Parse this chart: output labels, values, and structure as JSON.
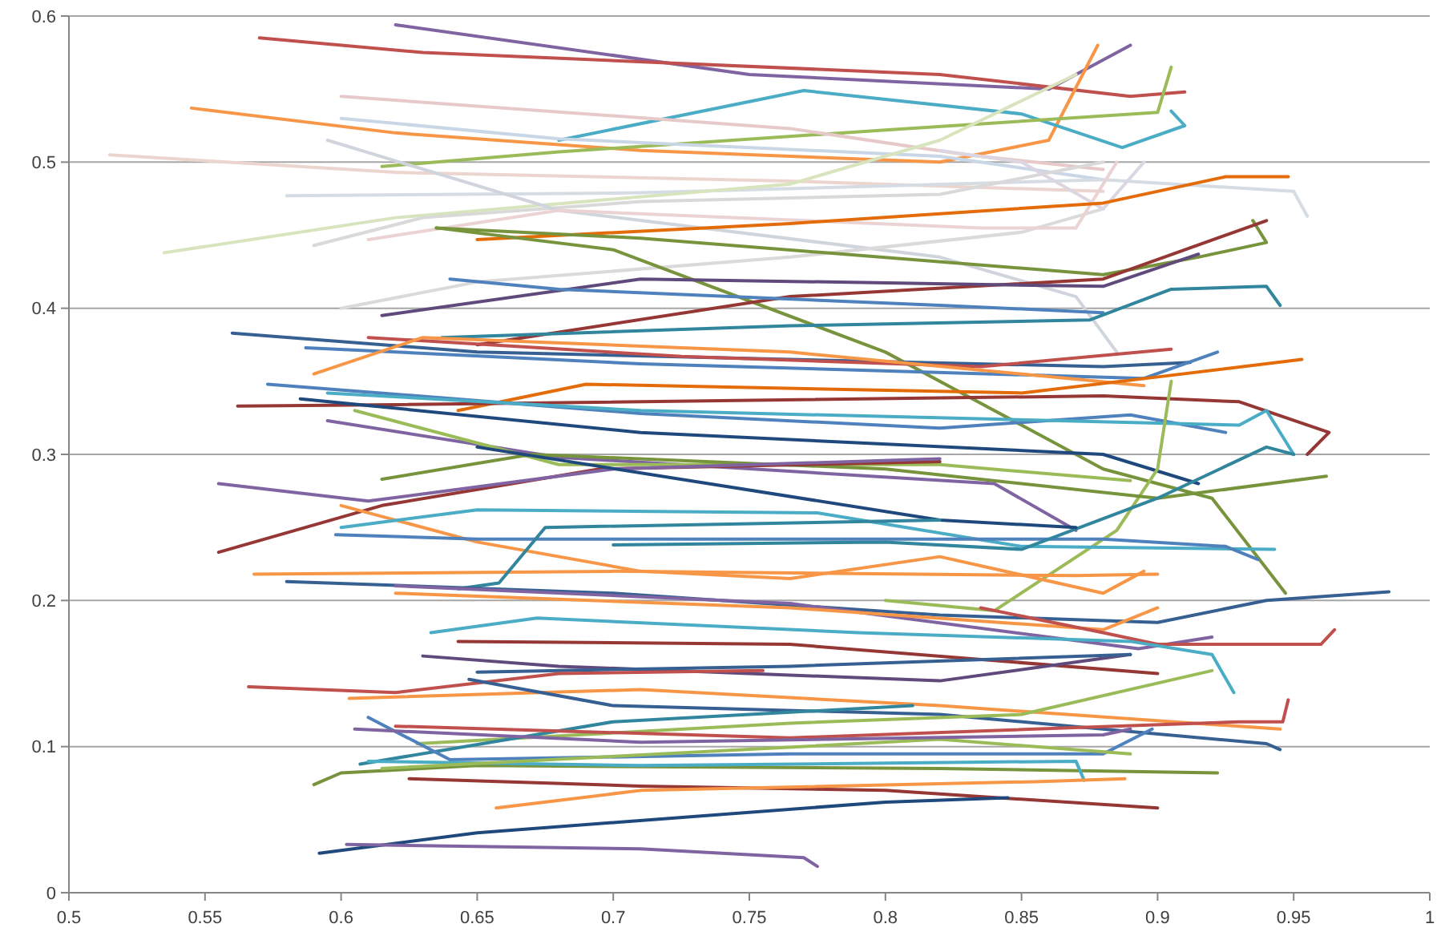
{
  "chart_data": {
    "type": "line",
    "xlim": [
      0.5,
      1
    ],
    "ylim": [
      0,
      0.6
    ],
    "xticks": [
      0.5,
      0.55,
      0.6,
      0.65,
      0.7,
      0.75,
      0.8,
      0.85,
      0.9,
      0.95,
      1
    ],
    "yticks": [
      0,
      0.1,
      0.2,
      0.3,
      0.4,
      0.5,
      0.6
    ],
    "grid": "y",
    "series": [
      {
        "color": "#8064a2",
        "x": [
          0.62,
          0.75,
          0.86,
          0.89
        ],
        "values": [
          0.594,
          0.56,
          0.55,
          0.58
        ]
      },
      {
        "color": "#c0504d",
        "x": [
          0.57,
          0.63,
          0.82,
          0.89,
          0.91
        ],
        "values": [
          0.585,
          0.575,
          0.56,
          0.545,
          0.548
        ]
      },
      {
        "color": "#f79646",
        "x": [
          0.545,
          0.62,
          0.71,
          0.82,
          0.86,
          0.878
        ],
        "values": [
          0.537,
          0.52,
          0.508,
          0.5,
          0.515,
          0.58
        ]
      },
      {
        "color": "#4bacc6",
        "x": [
          0.68,
          0.77,
          0.85,
          0.887,
          0.91,
          0.905
        ],
        "values": [
          0.515,
          0.549,
          0.533,
          0.51,
          0.525,
          0.535
        ]
      },
      {
        "color": "#9bbb59",
        "x": [
          0.615,
          0.68,
          0.8,
          0.9,
          0.905
        ],
        "values": [
          0.497,
          0.507,
          0.522,
          0.534,
          0.565
        ]
      },
      {
        "color": "#e6c9c8",
        "x": [
          0.6,
          0.765,
          0.83,
          0.88
        ],
        "values": [
          0.545,
          0.523,
          0.505,
          0.495
        ]
      },
      {
        "color": "#c9d6e6",
        "x": [
          0.6,
          0.68,
          0.82,
          0.88
        ],
        "values": [
          0.53,
          0.516,
          0.504,
          0.488
        ]
      },
      {
        "color": "#ecd5cf",
        "x": [
          0.515,
          0.62,
          0.765,
          0.88
        ],
        "values": [
          0.505,
          0.493,
          0.487,
          0.48
        ]
      },
      {
        "color": "#d6dce4",
        "x": [
          0.58,
          0.71,
          0.88,
          0.95,
          0.955
        ],
        "values": [
          0.477,
          0.479,
          0.488,
          0.48,
          0.463
        ]
      },
      {
        "color": "#d7e4bd",
        "x": [
          0.535,
          0.62,
          0.765,
          0.82,
          0.87
        ],
        "values": [
          0.438,
          0.462,
          0.485,
          0.515,
          0.56
        ]
      },
      {
        "color": "#d9d9d9",
        "x": [
          0.59,
          0.63,
          0.71,
          0.82,
          0.88
        ],
        "values": [
          0.443,
          0.462,
          0.473,
          0.478,
          0.5
        ]
      },
      {
        "color": "#d0d4dc",
        "x": [
          0.595,
          0.68,
          0.82,
          0.87,
          0.885
        ],
        "values": [
          0.515,
          0.467,
          0.435,
          0.408,
          0.37
        ]
      },
      {
        "color": "#dadada",
        "x": [
          0.6,
          0.65,
          0.765,
          0.85,
          0.88
        ],
        "values": [
          0.4,
          0.418,
          0.435,
          0.452,
          0.468
        ]
      },
      {
        "color": "#ead3d2",
        "x": [
          0.61,
          0.68,
          0.835,
          0.87,
          0.885
        ],
        "values": [
          0.447,
          0.467,
          0.455,
          0.455,
          0.5
        ]
      },
      {
        "color": "#dcd6e2",
        "x": [
          0.82,
          0.85,
          0.88,
          0.895
        ],
        "values": [
          0.508,
          0.5,
          0.468,
          0.5
        ]
      },
      {
        "color": "#e36c09",
        "x": [
          0.65,
          0.765,
          0.88,
          0.925,
          0.948
        ],
        "values": [
          0.447,
          0.458,
          0.472,
          0.49,
          0.49
        ]
      },
      {
        "color": "#77933c",
        "x": [
          0.635,
          0.71,
          0.88,
          0.915,
          0.94,
          0.935
        ],
        "values": [
          0.455,
          0.448,
          0.423,
          0.435,
          0.445,
          0.46
        ]
      },
      {
        "color": "#77933c",
        "x": [
          0.635,
          0.7,
          0.8,
          0.88,
          0.92,
          0.947
        ],
        "values": [
          0.455,
          0.44,
          0.37,
          0.29,
          0.27,
          0.205
        ]
      },
      {
        "color": "#953735",
        "x": [
          0.65,
          0.765,
          0.88,
          0.94
        ],
        "values": [
          0.375,
          0.408,
          0.42,
          0.46
        ]
      },
      {
        "color": "#604a7b",
        "x": [
          0.615,
          0.71,
          0.88,
          0.915
        ],
        "values": [
          0.395,
          0.42,
          0.415,
          0.437
        ]
      },
      {
        "color": "#4f81bd",
        "x": [
          0.64,
          0.68,
          0.82,
          0.88
        ],
        "values": [
          0.42,
          0.413,
          0.402,
          0.397
        ]
      },
      {
        "color": "#31859c",
        "x": [
          0.637,
          0.765,
          0.875,
          0.905,
          0.94,
          0.945
        ],
        "values": [
          0.38,
          0.388,
          0.392,
          0.413,
          0.415,
          0.402
        ]
      },
      {
        "color": "#376092",
        "x": [
          0.56,
          0.65,
          0.88,
          0.912
        ],
        "values": [
          0.383,
          0.37,
          0.36,
          0.363
        ]
      },
      {
        "color": "#4f81bd",
        "x": [
          0.587,
          0.71,
          0.895,
          0.922
        ],
        "values": [
          0.373,
          0.362,
          0.352,
          0.37
        ]
      },
      {
        "color": "#c0504d",
        "x": [
          0.61,
          0.725,
          0.835,
          0.905
        ],
        "values": [
          0.38,
          0.367,
          0.36,
          0.372
        ]
      },
      {
        "color": "#f79646",
        "x": [
          0.59,
          0.63,
          0.765,
          0.895
        ],
        "values": [
          0.355,
          0.38,
          0.37,
          0.347
        ]
      },
      {
        "color": "#e36c09",
        "x": [
          0.643,
          0.69,
          0.85,
          0.9,
          0.953
        ],
        "values": [
          0.33,
          0.348,
          0.342,
          0.353,
          0.365
        ]
      },
      {
        "color": "#953735",
        "x": [
          0.562,
          0.62,
          0.88,
          0.93,
          0.963,
          0.955
        ],
        "values": [
          0.333,
          0.334,
          0.34,
          0.336,
          0.315,
          0.3
        ]
      },
      {
        "color": "#4f81bd",
        "x": [
          0.573,
          0.71,
          0.82,
          0.89,
          0.925
        ],
        "values": [
          0.348,
          0.328,
          0.318,
          0.327,
          0.315
        ]
      },
      {
        "color": "#1f497d",
        "x": [
          0.585,
          0.71,
          0.88,
          0.915
        ],
        "values": [
          0.338,
          0.315,
          0.3,
          0.28
        ]
      },
      {
        "color": "#4bacc6",
        "x": [
          0.595,
          0.71,
          0.93,
          0.94,
          0.95
        ],
        "values": [
          0.342,
          0.33,
          0.32,
          0.33,
          0.3
        ]
      },
      {
        "color": "#8064a2",
        "x": [
          0.595,
          0.68,
          0.84,
          0.87
        ],
        "values": [
          0.323,
          0.298,
          0.28,
          0.248
        ]
      },
      {
        "color": "#9bbb59",
        "x": [
          0.605,
          0.68,
          0.82,
          0.89
        ],
        "values": [
          0.33,
          0.293,
          0.293,
          0.282
        ]
      },
      {
        "color": "#9bbb59",
        "x": [
          0.8,
          0.84,
          0.885,
          0.9,
          0.905
        ],
        "values": [
          0.2,
          0.193,
          0.248,
          0.29,
          0.35
        ]
      },
      {
        "color": "#77933c",
        "x": [
          0.615,
          0.67,
          0.8,
          0.9,
          0.962
        ],
        "values": [
          0.283,
          0.3,
          0.29,
          0.27,
          0.285
        ]
      },
      {
        "color": "#953735",
        "x": [
          0.555,
          0.615,
          0.695,
          0.82
        ],
        "values": [
          0.233,
          0.265,
          0.29,
          0.295
        ]
      },
      {
        "color": "#8064a2",
        "x": [
          0.555,
          0.61,
          0.7,
          0.82
        ],
        "values": [
          0.28,
          0.268,
          0.29,
          0.297
        ]
      },
      {
        "color": "#f79646",
        "x": [
          0.6,
          0.65,
          0.71,
          0.765,
          0.82,
          0.88,
          0.895
        ],
        "values": [
          0.265,
          0.24,
          0.22,
          0.215,
          0.23,
          0.205,
          0.22
        ]
      },
      {
        "color": "#4bacc6",
        "x": [
          0.6,
          0.65,
          0.775,
          0.85,
          0.943
        ],
        "values": [
          0.25,
          0.262,
          0.26,
          0.237,
          0.235
        ]
      },
      {
        "color": "#4f81bd",
        "x": [
          0.598,
          0.65,
          0.88,
          0.925,
          0.937
        ],
        "values": [
          0.245,
          0.242,
          0.242,
          0.237,
          0.228
        ]
      },
      {
        "color": "#31859c",
        "x": [
          0.7,
          0.8,
          0.85,
          0.9,
          0.94,
          0.95
        ],
        "values": [
          0.238,
          0.24,
          0.235,
          0.27,
          0.305,
          0.3
        ]
      },
      {
        "color": "#1f497d",
        "x": [
          0.65,
          0.82,
          0.87
        ],
        "values": [
          0.305,
          0.255,
          0.25
        ]
      },
      {
        "color": "#f79646",
        "x": [
          0.568,
          0.7,
          0.87,
          0.9
        ],
        "values": [
          0.218,
          0.22,
          0.217,
          0.218
        ]
      },
      {
        "color": "#31859c",
        "x": [
          0.643,
          0.658,
          0.675,
          0.82
        ],
        "values": [
          0.208,
          0.212,
          0.25,
          0.255
        ]
      },
      {
        "color": "#376092",
        "x": [
          0.58,
          0.7,
          0.82,
          0.9,
          0.94,
          0.985
        ],
        "values": [
          0.213,
          0.205,
          0.19,
          0.185,
          0.2,
          0.206
        ]
      },
      {
        "color": "#8064a2",
        "x": [
          0.62,
          0.765,
          0.893,
          0.92
        ],
        "values": [
          0.21,
          0.198,
          0.167,
          0.175
        ]
      },
      {
        "color": "#f79646",
        "x": [
          0.62,
          0.765,
          0.88,
          0.9
        ],
        "values": [
          0.205,
          0.195,
          0.18,
          0.195
        ]
      },
      {
        "color": "#c0504d",
        "x": [
          0.835,
          0.88,
          0.9,
          0.96,
          0.965
        ],
        "values": [
          0.195,
          0.178,
          0.17,
          0.17,
          0.18
        ]
      },
      {
        "color": "#4bacc6",
        "x": [
          0.633,
          0.672,
          0.79,
          0.89,
          0.92,
          0.928
        ],
        "values": [
          0.178,
          0.188,
          0.178,
          0.172,
          0.163,
          0.137
        ]
      },
      {
        "color": "#953735",
        "x": [
          0.643,
          0.765,
          0.9
        ],
        "values": [
          0.172,
          0.17,
          0.15
        ]
      },
      {
        "color": "#604a7b",
        "x": [
          0.63,
          0.68,
          0.82,
          0.89
        ],
        "values": [
          0.162,
          0.155,
          0.145,
          0.163
        ]
      },
      {
        "color": "#376092",
        "x": [
          0.65,
          0.765,
          0.89
        ],
        "values": [
          0.151,
          0.155,
          0.163
        ]
      },
      {
        "color": "#c0504d",
        "x": [
          0.566,
          0.62,
          0.68,
          0.755
        ],
        "values": [
          0.141,
          0.137,
          0.15,
          0.152
        ]
      },
      {
        "color": "#f79646",
        "x": [
          0.603,
          0.71,
          0.82,
          0.945
        ],
        "values": [
          0.133,
          0.139,
          0.128,
          0.112
        ]
      },
      {
        "color": "#376092",
        "x": [
          0.647,
          0.7,
          0.82,
          0.94,
          0.945
        ],
        "values": [
          0.146,
          0.128,
          0.122,
          0.102,
          0.098
        ]
      },
      {
        "color": "#9bbb59",
        "x": [
          0.628,
          0.765,
          0.85,
          0.92
        ],
        "values": [
          0.102,
          0.116,
          0.122,
          0.152
        ]
      },
      {
        "color": "#31859c",
        "x": [
          0.607,
          0.7,
          0.81
        ],
        "values": [
          0.088,
          0.117,
          0.128
        ]
      },
      {
        "color": "#4f81bd",
        "x": [
          0.61,
          0.64,
          0.765,
          0.88,
          0.898
        ],
        "values": [
          0.12,
          0.091,
          0.095,
          0.095,
          0.112
        ]
      },
      {
        "color": "#c0504d",
        "x": [
          0.62,
          0.765,
          0.93,
          0.946,
          0.948
        ],
        "values": [
          0.114,
          0.106,
          0.117,
          0.117,
          0.132
        ]
      },
      {
        "color": "#77933c",
        "x": [
          0.59,
          0.6,
          0.65,
          0.82,
          0.922
        ],
        "values": [
          0.074,
          0.082,
          0.087,
          0.085,
          0.082
        ]
      },
      {
        "color": "#4bacc6",
        "x": [
          0.61,
          0.71,
          0.87,
          0.873
        ],
        "values": [
          0.09,
          0.087,
          0.09,
          0.077
        ]
      },
      {
        "color": "#953735",
        "x": [
          0.625,
          0.71,
          0.8,
          0.9
        ],
        "values": [
          0.078,
          0.073,
          0.07,
          0.058
        ]
      },
      {
        "color": "#f79646",
        "x": [
          0.657,
          0.71,
          0.855,
          0.888
        ],
        "values": [
          0.058,
          0.07,
          0.076,
          0.078
        ]
      },
      {
        "color": "#1f497d",
        "x": [
          0.592,
          0.65,
          0.8,
          0.845
        ],
        "values": [
          0.027,
          0.041,
          0.062,
          0.065
        ]
      },
      {
        "color": "#8064a2",
        "x": [
          0.602,
          0.71,
          0.77,
          0.775
        ],
        "values": [
          0.033,
          0.03,
          0.024,
          0.018
        ]
      },
      {
        "color": "#9bbb59",
        "x": [
          0.615,
          0.82,
          0.89
        ],
        "values": [
          0.085,
          0.105,
          0.095
        ]
      },
      {
        "color": "#8064a2",
        "x": [
          0.605,
          0.71,
          0.88,
          0.89
        ],
        "values": [
          0.112,
          0.103,
          0.108,
          0.112
        ]
      }
    ]
  }
}
